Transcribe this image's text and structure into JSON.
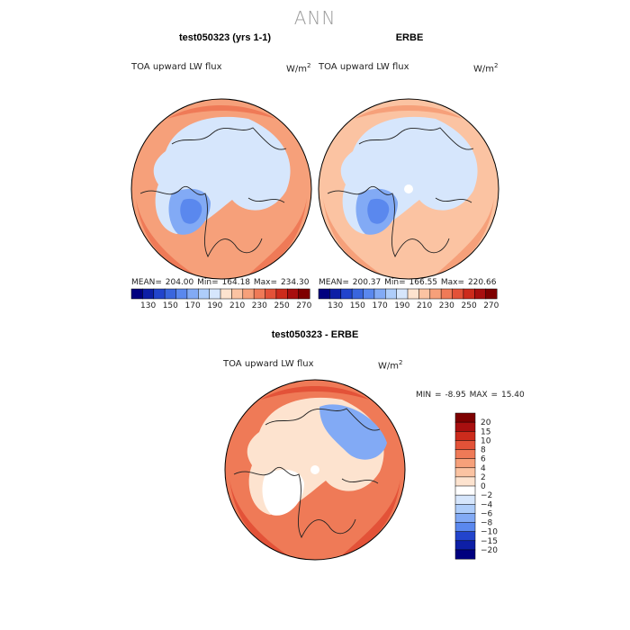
{
  "page_title": "ANN",
  "chart_data": [
    {
      "type": "heatmap",
      "projection": "north polar stereographic",
      "title": "test050323 (yrs 1-1)",
      "field": "TOA upward LW flux",
      "units": "W/m",
      "units_exp": "2",
      "stats": {
        "mean": "204.00",
        "min": "164.18",
        "max": "234.30"
      },
      "stats_text": {
        "mean_label": "MEAN=",
        "min_label": "Min=",
        "max_label": "Max="
      },
      "colorbar": {
        "orientation": "horizontal",
        "levels": [
          130,
          150,
          170,
          190,
          210,
          230,
          250,
          270
        ],
        "colors": [
          "#00007f",
          "#0d1fa6",
          "#2244cc",
          "#3a66dd",
          "#5a88ee",
          "#82aaf5",
          "#aecdfa",
          "#d6e6fc",
          "#fde3cf",
          "#fbc3a2",
          "#f6a07a",
          "#ef7a57",
          "#e35238",
          "#cc2b1c",
          "#a80f0f",
          "#7e0000"
        ]
      },
      "regions": [
        {
          "name": "ocean-midlat",
          "color": "#f6a07a"
        },
        {
          "name": "ocean-subtropic",
          "color": "#ef7a57"
        },
        {
          "name": "arctic",
          "color": "#d6e6fc"
        },
        {
          "name": "greenland",
          "color": "#82aaf5"
        },
        {
          "name": "greenland-core",
          "color": "#5a88ee"
        }
      ]
    },
    {
      "type": "heatmap",
      "projection": "north polar stereographic",
      "title": "ERBE",
      "field": "TOA upward LW flux",
      "units": "W/m",
      "units_exp": "2",
      "stats": {
        "mean": "200.37",
        "min": "166.55",
        "max": "220.66"
      },
      "stats_text": {
        "mean_label": "MEAN=",
        "min_label": "Min=",
        "max_label": "Max="
      },
      "colorbar": {
        "orientation": "horizontal",
        "levels": [
          130,
          150,
          170,
          190,
          210,
          230,
          250,
          270
        ],
        "colors": [
          "#00007f",
          "#0d1fa6",
          "#2244cc",
          "#3a66dd",
          "#5a88ee",
          "#82aaf5",
          "#aecdfa",
          "#d6e6fc",
          "#fde3cf",
          "#fbc3a2",
          "#f6a07a",
          "#ef7a57",
          "#e35238",
          "#cc2b1c",
          "#a80f0f",
          "#7e0000"
        ]
      },
      "regions": [
        {
          "name": "ocean-midlat",
          "color": "#fbc3a2"
        },
        {
          "name": "ocean-subtropic",
          "color": "#f6a07a"
        },
        {
          "name": "arctic",
          "color": "#d6e6fc"
        },
        {
          "name": "greenland",
          "color": "#82aaf5"
        },
        {
          "name": "greenland-core",
          "color": "#5a88ee"
        }
      ]
    },
    {
      "type": "heatmap",
      "projection": "north polar stereographic",
      "title": "test050323 - ERBE",
      "field": "TOA upward LW flux",
      "units": "W/m",
      "units_exp": "2",
      "stats": {
        "min": "-8.95",
        "max": "15.40"
      },
      "stats_text": {
        "min_label": "MIN =",
        "max_label": "MAX ="
      },
      "colorbar": {
        "orientation": "vertical",
        "levels": [
          "20",
          "15",
          "10",
          "8",
          "6",
          "4",
          "2",
          "0",
          "−2",
          "−4",
          "−6",
          "−8",
          "−10",
          "−15",
          "−20"
        ],
        "colors": [
          "#7e0000",
          "#a80f0f",
          "#cc2b1c",
          "#e35238",
          "#ef7a57",
          "#f6a07a",
          "#fbc3a2",
          "#fde3cf",
          "#ffffff",
          "#d6e6fc",
          "#aecdfa",
          "#82aaf5",
          "#5a88ee",
          "#2244cc",
          "#0d1fa6",
          "#00007f"
        ]
      },
      "regions": [
        {
          "name": "ocean-midlat",
          "color": "#ef7a57"
        },
        {
          "name": "ocean-subtropic",
          "color": "#e35238"
        },
        {
          "name": "arctic",
          "color": "#fde3cf"
        },
        {
          "name": "siberia-negative",
          "color": "#82aaf5"
        },
        {
          "name": "greenland",
          "color": "#ffffff"
        }
      ]
    }
  ]
}
